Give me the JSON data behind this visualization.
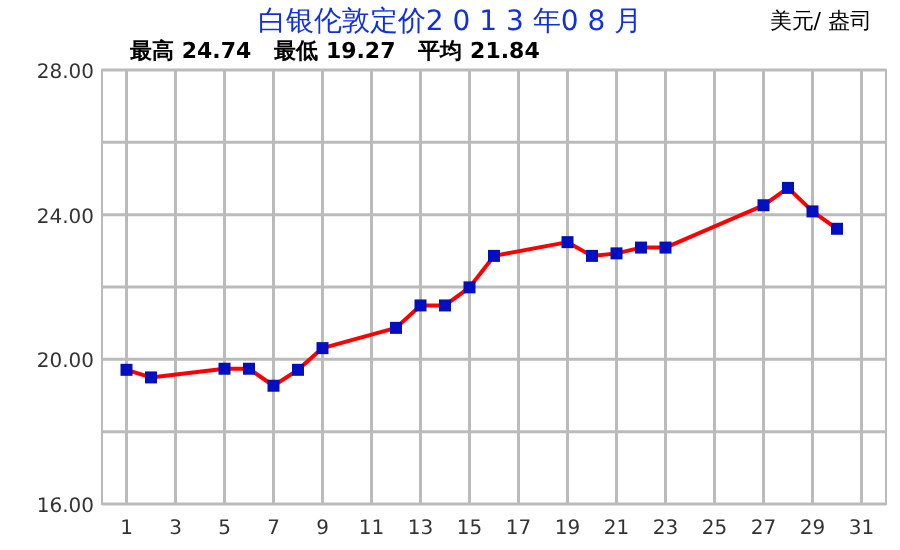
{
  "chart_data": {
    "type": "line",
    "title": "白银伦敦定价2 0 1 3 年0 8 月",
    "subtitle": "最高 24.74   最低 19.27   平均 21.84",
    "ylabel": "美元/ 盎司",
    "x": [
      1,
      2,
      5,
      6,
      7,
      8,
      9,
      12,
      13,
      14,
      15,
      16,
      19,
      20,
      21,
      22,
      23,
      27,
      28,
      29,
      30
    ],
    "series": [
      {
        "color": "#ff0000",
        "values": [
          19.71,
          19.5,
          19.74,
          19.74,
          19.27,
          19.71,
          20.31,
          20.87,
          21.49,
          21.49,
          21.99,
          22.86,
          23.24,
          22.86,
          22.93,
          23.09,
          23.09,
          24.26,
          24.74,
          24.09,
          23.61
        ]
      }
    ],
    "xlim": [
      0,
      32
    ],
    "ylim": [
      16,
      28
    ],
    "xticks": [
      1,
      3,
      5,
      7,
      9,
      11,
      13,
      15,
      17,
      19,
      21,
      23,
      25,
      27,
      29,
      31
    ],
    "yticks": [
      {
        "value": 16,
        "label": "16.00"
      },
      {
        "value": 18,
        "label": null
      },
      {
        "value": 20,
        "label": "20.00"
      },
      {
        "value": 22,
        "label": null
      },
      {
        "value": 24,
        "label": "24.00"
      },
      {
        "value": 26,
        "label": null
      },
      {
        "value": 28,
        "label": "28.00"
      }
    ],
    "grid": true,
    "marker": "square",
    "line_style": "solid"
  }
}
